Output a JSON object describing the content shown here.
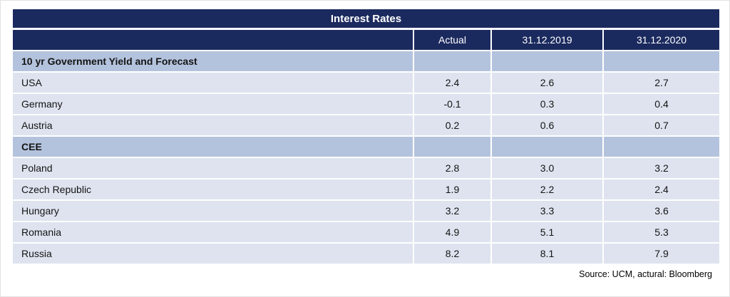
{
  "page": {
    "title": "Interest Rates",
    "source_note": "Source: UCM, actural: Bloomberg"
  },
  "colors": {
    "header_navy": "#1B2A5E",
    "section_row_bg": "#B4C3DD",
    "data_row_bg": "#DEE3EF",
    "separator": "#FFFFFF",
    "header_text": "#FFFFFF",
    "body_text": "#141414"
  },
  "table": {
    "columns": [
      "",
      "Actual",
      "31.12.2019",
      "31.12.2020"
    ],
    "rows": [
      {
        "type": "section",
        "label": "10 yr Government Yield and Forecast",
        "values": [
          "",
          "",
          ""
        ]
      },
      {
        "type": "data",
        "label": "USA",
        "values": [
          "2.4",
          "2.6",
          "2.7"
        ]
      },
      {
        "type": "data",
        "label": "Germany",
        "values": [
          "-0.1",
          "0.3",
          "0.4"
        ]
      },
      {
        "type": "data",
        "label": "Austria",
        "values": [
          "0.2",
          "0.6",
          "0.7"
        ]
      },
      {
        "type": "section",
        "label": "CEE",
        "values": [
          "",
          "",
          ""
        ]
      },
      {
        "type": "data",
        "label": "Poland",
        "values": [
          "2.8",
          "3.0",
          "3.2"
        ]
      },
      {
        "type": "data",
        "label": "Czech Republic",
        "values": [
          "1.9",
          "2.2",
          "2.4"
        ]
      },
      {
        "type": "data",
        "label": "Hungary",
        "values": [
          "3.2",
          "3.3",
          "3.6"
        ]
      },
      {
        "type": "data",
        "label": "Romania",
        "values": [
          "4.9",
          "5.1",
          "5.3"
        ]
      },
      {
        "type": "data",
        "label": "Russia",
        "values": [
          "8.2",
          "8.1",
          "7.9"
        ]
      }
    ]
  },
  "chart_data": {
    "type": "table",
    "title": "Interest Rates",
    "columns": [
      "",
      "Actual",
      "31.12.2019",
      "31.12.2020"
    ],
    "sections": [
      {
        "header": "10 yr Government Yield and Forecast",
        "rows": [
          {
            "label": "USA",
            "actual": 2.4,
            "forecast_2019": 2.6,
            "forecast_2020": 2.7
          },
          {
            "label": "Germany",
            "actual": -0.1,
            "forecast_2019": 0.3,
            "forecast_2020": 0.4
          },
          {
            "label": "Austria",
            "actual": 0.2,
            "forecast_2019": 0.6,
            "forecast_2020": 0.7
          }
        ]
      },
      {
        "header": "CEE",
        "rows": [
          {
            "label": "Poland",
            "actual": 2.8,
            "forecast_2019": 3.0,
            "forecast_2020": 3.2
          },
          {
            "label": "Czech Republic",
            "actual": 1.9,
            "forecast_2019": 2.2,
            "forecast_2020": 2.4
          },
          {
            "label": "Hungary",
            "actual": 3.2,
            "forecast_2019": 3.3,
            "forecast_2020": 3.6
          },
          {
            "label": "Romania",
            "actual": 4.9,
            "forecast_2019": 5.1,
            "forecast_2020": 5.3
          },
          {
            "label": "Russia",
            "actual": 8.2,
            "forecast_2019": 8.1,
            "forecast_2020": 7.9
          }
        ]
      }
    ],
    "source": "Source: UCM, actural: Bloomberg"
  }
}
